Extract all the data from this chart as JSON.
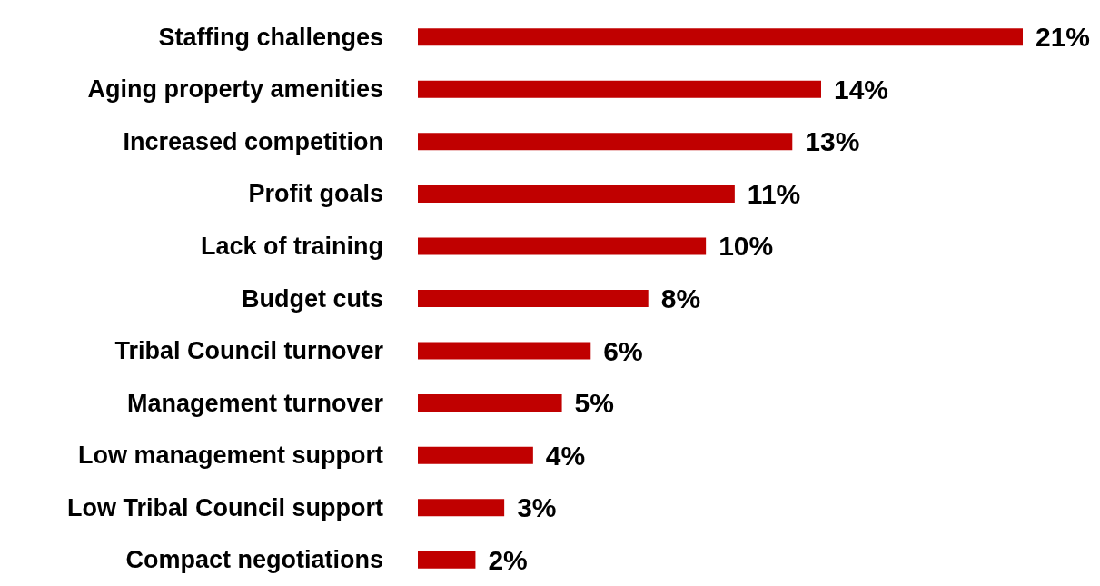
{
  "chart_data": {
    "type": "bar",
    "orientation": "horizontal",
    "categories": [
      "Staffing challenges",
      "Aging property amenities",
      "Increased competition",
      "Profit goals",
      "Lack of training",
      "Budget cuts",
      "Tribal Council turnover",
      "Management turnover",
      "Low management support",
      "Low Tribal Council support",
      "Compact negotiations"
    ],
    "values": [
      21,
      14,
      13,
      11,
      10,
      8,
      6,
      5,
      4,
      3,
      2
    ],
    "value_labels": [
      "21%",
      "14%",
      "13%",
      "11%",
      "10%",
      "8%",
      "6%",
      "5%",
      "4%",
      "3%",
      "2%"
    ],
    "color": "#c00000"
  }
}
